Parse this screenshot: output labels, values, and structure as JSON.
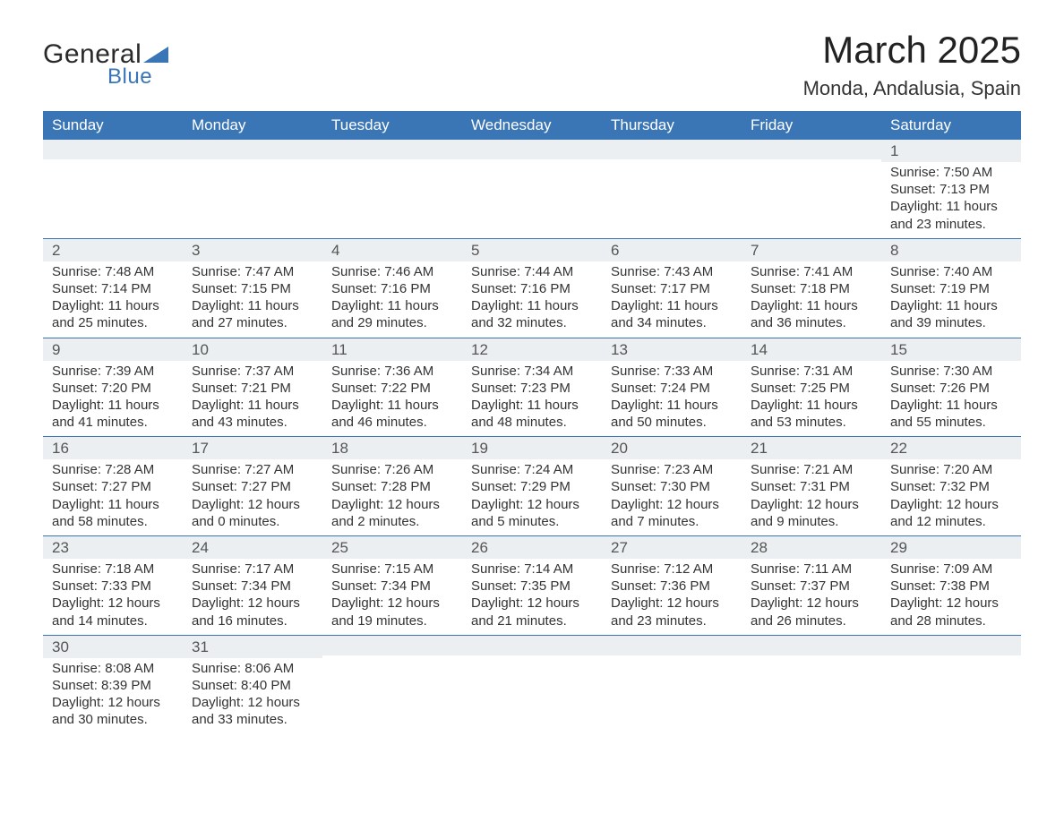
{
  "brand": {
    "name_part1": "General",
    "name_part2": "Blue",
    "text_color": "#2a2a2a",
    "accent_color": "#3a75b5"
  },
  "title": "March 2025",
  "location": "Monda, Andalusia, Spain",
  "colors": {
    "header_bg": "#3a75b5",
    "header_text": "#ffffff",
    "daynum_bg": "#eceff1",
    "row_border": "#3a75b5",
    "body_text": "#333333"
  },
  "day_headers": [
    "Sunday",
    "Monday",
    "Tuesday",
    "Wednesday",
    "Thursday",
    "Friday",
    "Saturday"
  ],
  "weeks": [
    [
      null,
      null,
      null,
      null,
      null,
      null,
      {
        "n": "1",
        "sr": "Sunrise: 7:50 AM",
        "ss": "Sunset: 7:13 PM",
        "d1": "Daylight: 11 hours",
        "d2": "and 23 minutes."
      }
    ],
    [
      {
        "n": "2",
        "sr": "Sunrise: 7:48 AM",
        "ss": "Sunset: 7:14 PM",
        "d1": "Daylight: 11 hours",
        "d2": "and 25 minutes."
      },
      {
        "n": "3",
        "sr": "Sunrise: 7:47 AM",
        "ss": "Sunset: 7:15 PM",
        "d1": "Daylight: 11 hours",
        "d2": "and 27 minutes."
      },
      {
        "n": "4",
        "sr": "Sunrise: 7:46 AM",
        "ss": "Sunset: 7:16 PM",
        "d1": "Daylight: 11 hours",
        "d2": "and 29 minutes."
      },
      {
        "n": "5",
        "sr": "Sunrise: 7:44 AM",
        "ss": "Sunset: 7:16 PM",
        "d1": "Daylight: 11 hours",
        "d2": "and 32 minutes."
      },
      {
        "n": "6",
        "sr": "Sunrise: 7:43 AM",
        "ss": "Sunset: 7:17 PM",
        "d1": "Daylight: 11 hours",
        "d2": "and 34 minutes."
      },
      {
        "n": "7",
        "sr": "Sunrise: 7:41 AM",
        "ss": "Sunset: 7:18 PM",
        "d1": "Daylight: 11 hours",
        "d2": "and 36 minutes."
      },
      {
        "n": "8",
        "sr": "Sunrise: 7:40 AM",
        "ss": "Sunset: 7:19 PM",
        "d1": "Daylight: 11 hours",
        "d2": "and 39 minutes."
      }
    ],
    [
      {
        "n": "9",
        "sr": "Sunrise: 7:39 AM",
        "ss": "Sunset: 7:20 PM",
        "d1": "Daylight: 11 hours",
        "d2": "and 41 minutes."
      },
      {
        "n": "10",
        "sr": "Sunrise: 7:37 AM",
        "ss": "Sunset: 7:21 PM",
        "d1": "Daylight: 11 hours",
        "d2": "and 43 minutes."
      },
      {
        "n": "11",
        "sr": "Sunrise: 7:36 AM",
        "ss": "Sunset: 7:22 PM",
        "d1": "Daylight: 11 hours",
        "d2": "and 46 minutes."
      },
      {
        "n": "12",
        "sr": "Sunrise: 7:34 AM",
        "ss": "Sunset: 7:23 PM",
        "d1": "Daylight: 11 hours",
        "d2": "and 48 minutes."
      },
      {
        "n": "13",
        "sr": "Sunrise: 7:33 AM",
        "ss": "Sunset: 7:24 PM",
        "d1": "Daylight: 11 hours",
        "d2": "and 50 minutes."
      },
      {
        "n": "14",
        "sr": "Sunrise: 7:31 AM",
        "ss": "Sunset: 7:25 PM",
        "d1": "Daylight: 11 hours",
        "d2": "and 53 minutes."
      },
      {
        "n": "15",
        "sr": "Sunrise: 7:30 AM",
        "ss": "Sunset: 7:26 PM",
        "d1": "Daylight: 11 hours",
        "d2": "and 55 minutes."
      }
    ],
    [
      {
        "n": "16",
        "sr": "Sunrise: 7:28 AM",
        "ss": "Sunset: 7:27 PM",
        "d1": "Daylight: 11 hours",
        "d2": "and 58 minutes."
      },
      {
        "n": "17",
        "sr": "Sunrise: 7:27 AM",
        "ss": "Sunset: 7:27 PM",
        "d1": "Daylight: 12 hours",
        "d2": "and 0 minutes."
      },
      {
        "n": "18",
        "sr": "Sunrise: 7:26 AM",
        "ss": "Sunset: 7:28 PM",
        "d1": "Daylight: 12 hours",
        "d2": "and 2 minutes."
      },
      {
        "n": "19",
        "sr": "Sunrise: 7:24 AM",
        "ss": "Sunset: 7:29 PM",
        "d1": "Daylight: 12 hours",
        "d2": "and 5 minutes."
      },
      {
        "n": "20",
        "sr": "Sunrise: 7:23 AM",
        "ss": "Sunset: 7:30 PM",
        "d1": "Daylight: 12 hours",
        "d2": "and 7 minutes."
      },
      {
        "n": "21",
        "sr": "Sunrise: 7:21 AM",
        "ss": "Sunset: 7:31 PM",
        "d1": "Daylight: 12 hours",
        "d2": "and 9 minutes."
      },
      {
        "n": "22",
        "sr": "Sunrise: 7:20 AM",
        "ss": "Sunset: 7:32 PM",
        "d1": "Daylight: 12 hours",
        "d2": "and 12 minutes."
      }
    ],
    [
      {
        "n": "23",
        "sr": "Sunrise: 7:18 AM",
        "ss": "Sunset: 7:33 PM",
        "d1": "Daylight: 12 hours",
        "d2": "and 14 minutes."
      },
      {
        "n": "24",
        "sr": "Sunrise: 7:17 AM",
        "ss": "Sunset: 7:34 PM",
        "d1": "Daylight: 12 hours",
        "d2": "and 16 minutes."
      },
      {
        "n": "25",
        "sr": "Sunrise: 7:15 AM",
        "ss": "Sunset: 7:34 PM",
        "d1": "Daylight: 12 hours",
        "d2": "and 19 minutes."
      },
      {
        "n": "26",
        "sr": "Sunrise: 7:14 AM",
        "ss": "Sunset: 7:35 PM",
        "d1": "Daylight: 12 hours",
        "d2": "and 21 minutes."
      },
      {
        "n": "27",
        "sr": "Sunrise: 7:12 AM",
        "ss": "Sunset: 7:36 PM",
        "d1": "Daylight: 12 hours",
        "d2": "and 23 minutes."
      },
      {
        "n": "28",
        "sr": "Sunrise: 7:11 AM",
        "ss": "Sunset: 7:37 PM",
        "d1": "Daylight: 12 hours",
        "d2": "and 26 minutes."
      },
      {
        "n": "29",
        "sr": "Sunrise: 7:09 AM",
        "ss": "Sunset: 7:38 PM",
        "d1": "Daylight: 12 hours",
        "d2": "and 28 minutes."
      }
    ],
    [
      {
        "n": "30",
        "sr": "Sunrise: 8:08 AM",
        "ss": "Sunset: 8:39 PM",
        "d1": "Daylight: 12 hours",
        "d2": "and 30 minutes."
      },
      {
        "n": "31",
        "sr": "Sunrise: 8:06 AM",
        "ss": "Sunset: 8:40 PM",
        "d1": "Daylight: 12 hours",
        "d2": "and 33 minutes."
      },
      null,
      null,
      null,
      null,
      null
    ]
  ]
}
